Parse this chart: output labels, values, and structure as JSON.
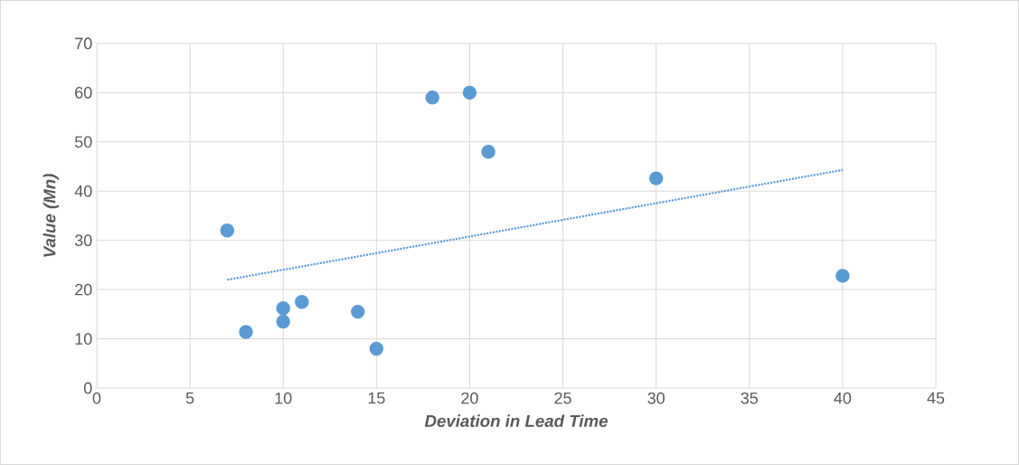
{
  "chart_data": {
    "type": "scatter",
    "xlabel": "Deviation in Lead Time",
    "ylabel": "Value (Mn)",
    "xlim": [
      0,
      45
    ],
    "ylim": [
      0,
      70
    ],
    "xticks": [
      0,
      5,
      10,
      15,
      20,
      25,
      30,
      35,
      40,
      45
    ],
    "yticks": [
      0,
      10,
      20,
      30,
      40,
      50,
      60,
      70
    ],
    "grid": true,
    "series": [
      {
        "marker": "circle",
        "color": "#5b9bd5",
        "x": [
          7,
          8,
          10,
          10,
          11,
          14,
          15,
          18,
          20,
          21,
          30,
          40
        ],
        "values": [
          32,
          11.4,
          16.2,
          13.5,
          17.5,
          15.5,
          8,
          59,
          60,
          48,
          42.6,
          22.8
        ]
      },
      {
        "type": "line",
        "line_style": "dotted",
        "marker": "none",
        "color": "#5b9bd5",
        "x": [
          7,
          40
        ],
        "values": [
          22,
          44.3
        ]
      }
    ]
  }
}
